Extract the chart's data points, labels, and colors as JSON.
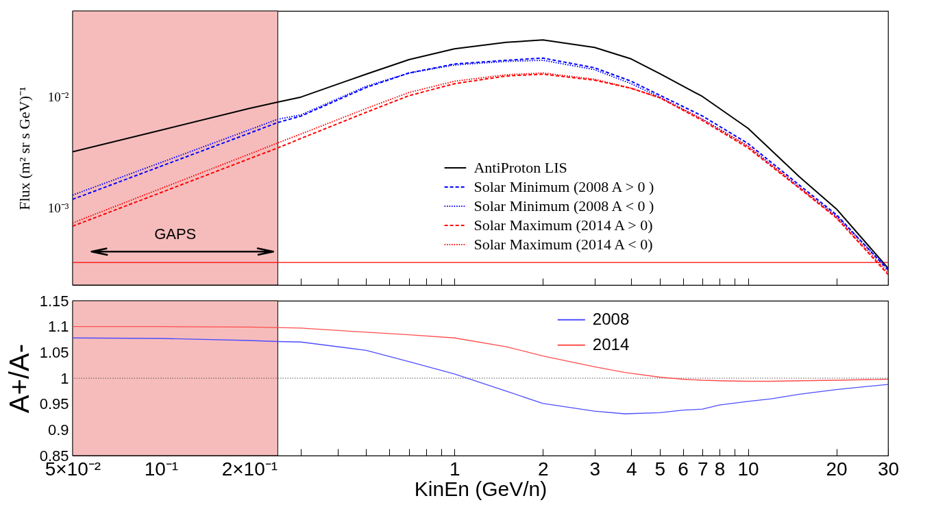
{
  "chart_data": [
    {
      "type": "line",
      "ylabel": "Flux (m² sr s GeV)⁻¹",
      "log": "xy",
      "grid": false,
      "legend": "bottom",
      "tick_labels": "y",
      "xlim": [
        0.05,
        30
      ],
      "xticks": [
        {
          "value": 0.05,
          "label": null
        },
        {
          "value": 0.06,
          "label": null
        },
        {
          "value": 0.07,
          "label": null
        },
        {
          "value": 0.08,
          "label": null
        },
        {
          "value": 0.09,
          "label": null
        },
        {
          "value": 0.1,
          "label": null
        },
        {
          "value": 0.2,
          "label": null
        },
        {
          "value": 0.3,
          "label": null
        },
        {
          "value": 0.4,
          "label": null
        },
        {
          "value": 0.5,
          "label": null
        },
        {
          "value": 0.6,
          "label": null
        },
        {
          "value": 0.7,
          "label": null
        },
        {
          "value": 0.8,
          "label": null
        },
        {
          "value": 0.9,
          "label": null
        },
        {
          "value": 1,
          "label": null
        },
        {
          "value": 2,
          "label": null
        },
        {
          "value": 3,
          "label": null
        },
        {
          "value": 4,
          "label": null
        },
        {
          "value": 5,
          "label": null
        },
        {
          "value": 6,
          "label": null
        },
        {
          "value": 7,
          "label": null
        },
        {
          "value": 8,
          "label": null
        },
        {
          "value": 9,
          "label": null
        },
        {
          "value": 10,
          "label": null
        },
        {
          "value": 20,
          "label": null
        },
        {
          "value": 30,
          "label": null
        }
      ],
      "ylim": [
        0.0002,
        0.06
      ],
      "yticks": [
        {
          "value": 0.0002,
          "label": null
        },
        {
          "value": 0.0003,
          "label": null
        },
        {
          "value": 0.0004,
          "label": null
        },
        {
          "value": 0.0005,
          "label": null
        },
        {
          "value": 0.0006,
          "label": null
        },
        {
          "value": 0.0007,
          "label": null
        },
        {
          "value": 0.0008,
          "label": null
        },
        {
          "value": 0.0009,
          "label": null
        },
        {
          "value": 0.001,
          "label": "10⁻³"
        },
        {
          "value": 0.002,
          "label": null
        },
        {
          "value": 0.003,
          "label": null
        },
        {
          "value": 0.004,
          "label": null
        },
        {
          "value": 0.005,
          "label": null
        },
        {
          "value": 0.006,
          "label": null
        },
        {
          "value": 0.007,
          "label": null
        },
        {
          "value": 0.008,
          "label": null
        },
        {
          "value": 0.009,
          "label": null
        },
        {
          "value": 0.01,
          "label": "10⁻²"
        },
        {
          "value": 0.02,
          "label": null
        },
        {
          "value": 0.03,
          "label": null
        },
        {
          "value": 0.04,
          "label": null
        },
        {
          "value": 0.05,
          "label": null
        },
        {
          "value": 0.06,
          "label": null
        }
      ],
      "bands": [
        {
          "axis": "x",
          "from": 0.05,
          "to": 0.25,
          "label": "GAPS",
          "color": "#f6bcbc"
        }
      ],
      "ref_lines": [
        {
          "axis": "y",
          "value": 0.00032,
          "color": "#ff0000",
          "line_style": "solid"
        }
      ],
      "x": [
        0.05,
        0.1,
        0.2,
        0.25,
        0.3,
        0.5,
        0.7,
        1,
        1.5,
        2,
        3,
        4,
        5,
        7,
        10,
        15,
        20,
        30
      ],
      "series": [
        {
          "name": "AntiProton LIS",
          "color": "#000000",
          "line_style": "solid",
          "values": [
            0.0032,
            0.00502,
            0.0079,
            0.009,
            0.01,
            0.0161,
            0.0218,
            0.0273,
            0.0312,
            0.0328,
            0.0281,
            0.0221,
            0.0163,
            0.0101,
            0.00522,
            0.00189,
            0.000975,
            0.000284
          ]
        },
        {
          "name": "Solar Minimum (2008 A > 0 )",
          "color": "#0000ff",
          "line_style": "dashed",
          "values": [
            0.00119,
            0.00237,
            0.00471,
            0.00589,
            0.00673,
            0.0122,
            0.0165,
            0.0199,
            0.0215,
            0.0225,
            0.0184,
            0.0139,
            0.0104,
            0.00673,
            0.0038,
            0.00159,
            0.000865,
            0.000273
          ]
        },
        {
          "name": "Solar Minimum (2008 A < 0 )",
          "color": "#0000ff",
          "line_style": "dotted",
          "values": [
            0.0013,
            0.00256,
            0.00506,
            0.0063,
            0.00691,
            0.0125,
            0.0165,
            0.0195,
            0.021,
            0.0215,
            0.0177,
            0.0132,
            0.01,
            0.0063,
            0.0036,
            0.00151,
            0.000842,
            0.000281
          ]
        },
        {
          "name": "Solar Maximum (2014 A > 0)",
          "color": "#ff0000",
          "line_style": "dashed",
          "values": [
            0.000681,
            0.00137,
            0.00277,
            0.00347,
            0.00423,
            0.00728,
            0.0103,
            0.0132,
            0.0155,
            0.0161,
            0.0142,
            0.012,
            0.00987,
            0.00613,
            0.00347,
            0.00149,
            0.000809,
            0.000249
          ]
        },
        {
          "name": "Solar Maximum (2014 A < 0)",
          "color": "#ff0000",
          "line_style": "dotted",
          "values": [
            0.000728,
            0.00149,
            0.00305,
            0.00385,
            0.00464,
            0.00788,
            0.011,
            0.0139,
            0.0159,
            0.0165,
            0.0145,
            0.012,
            0.00987,
            0.0063,
            0.0036,
            0.00153,
            0.00082,
            0.000259
          ]
        }
      ]
    },
    {
      "type": "line",
      "xlabel": "KinEn (GeV/n)",
      "ylabel": "A+/A-",
      "log": "x",
      "grid": false,
      "legend": "top right",
      "xlim": [
        0.05,
        30
      ],
      "xticks": [
        {
          "value": 0.05,
          "label": "5×10⁻²"
        },
        {
          "value": 0.06,
          "label": null
        },
        {
          "value": 0.07,
          "label": null
        },
        {
          "value": 0.08,
          "label": null
        },
        {
          "value": 0.09,
          "label": null
        },
        {
          "value": 0.1,
          "label": "10⁻¹"
        },
        {
          "value": 0.2,
          "label": "2×10⁻¹"
        },
        {
          "value": 0.3,
          "label": null
        },
        {
          "value": 0.4,
          "label": null
        },
        {
          "value": 0.5,
          "label": null
        },
        {
          "value": 0.6,
          "label": null
        },
        {
          "value": 0.7,
          "label": null
        },
        {
          "value": 0.8,
          "label": null
        },
        {
          "value": 0.9,
          "label": null
        },
        1,
        2,
        3,
        4,
        5,
        6,
        7,
        8,
        {
          "value": 9,
          "label": null
        },
        10,
        20,
        30
      ],
      "ylim": [
        0.85,
        1.15
      ],
      "yticks": [
        0.85,
        0.9,
        0.95,
        1,
        1.05,
        1.1,
        1.15
      ],
      "bands": [
        {
          "axis": "x",
          "from": 0.05,
          "to": 0.25,
          "color": "#f6bcbc"
        }
      ],
      "ref_lines": [
        {
          "axis": "y",
          "value": 1,
          "color": "#555555",
          "line_style": "dotted"
        }
      ],
      "x": [
        0.05,
        0.1,
        0.2,
        0.25,
        0.3,
        0.5,
        0.7,
        1,
        1.5,
        2,
        3,
        3.8,
        5,
        6,
        7,
        8,
        10,
        12,
        15,
        20,
        30
      ],
      "series": [
        {
          "name": "2008",
          "color": "#4d4dff",
          "values": [
            1.078,
            1.077,
            1.073,
            1.071,
            1.07,
            1.054,
            1.032,
            1.008,
            0.975,
            0.951,
            0.936,
            0.931,
            0.933,
            0.938,
            0.94,
            0.948,
            0.955,
            0.96,
            0.969,
            0.978,
            0.988
          ]
        },
        {
          "name": "2014",
          "color": "#ff4d4d",
          "values": [
            1.1,
            1.1,
            1.099,
            1.098,
            1.097,
            1.089,
            1.084,
            1.078,
            1.061,
            1.043,
            1.022,
            1.011,
            1.002,
            0.998,
            0.996,
            0.995,
            0.994,
            0.994,
            0.995,
            0.996,
            0.998
          ]
        }
      ]
    }
  ]
}
